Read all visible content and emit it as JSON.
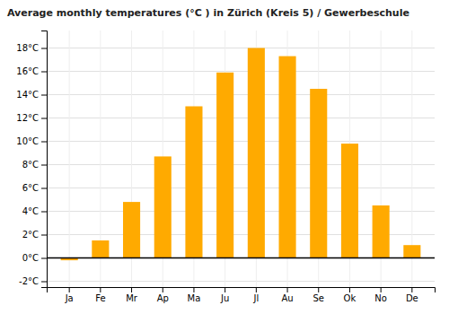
{
  "chart_data": {
    "type": "bar",
    "title": "Average monthly temperatures (°C ) in Zürich (Kreis 5) / Gewerbeschule",
    "categories": [
      "Ja",
      "Fe",
      "Mr",
      "Ap",
      "Ma",
      "Ju",
      "Jl",
      "Au",
      "Se",
      "Ok",
      "No",
      "De"
    ],
    "values": [
      -0.2,
      1.5,
      4.8,
      8.7,
      13.0,
      15.9,
      18.0,
      17.3,
      14.5,
      9.8,
      4.5,
      1.1
    ],
    "color": "#FFAA00",
    "ylim": [
      -2.5,
      19.5
    ],
    "yticks": [
      {
        "value": -2,
        "label": "-2°C"
      },
      {
        "value": 0,
        "label": "0°C"
      },
      {
        "value": 2,
        "label": "2°C"
      },
      {
        "value": 4,
        "label": "4°C"
      },
      {
        "value": 6,
        "label": "6°C"
      },
      {
        "value": 8,
        "label": "8°C"
      },
      {
        "value": 10,
        "label": "10°C"
      },
      {
        "value": 12,
        "label": "12°C"
      },
      {
        "value": 14,
        "label": "14°C"
      },
      {
        "value": 16,
        "label": "16°C"
      },
      {
        "value": 18,
        "label": "18°C"
      }
    ],
    "grid": true
  }
}
